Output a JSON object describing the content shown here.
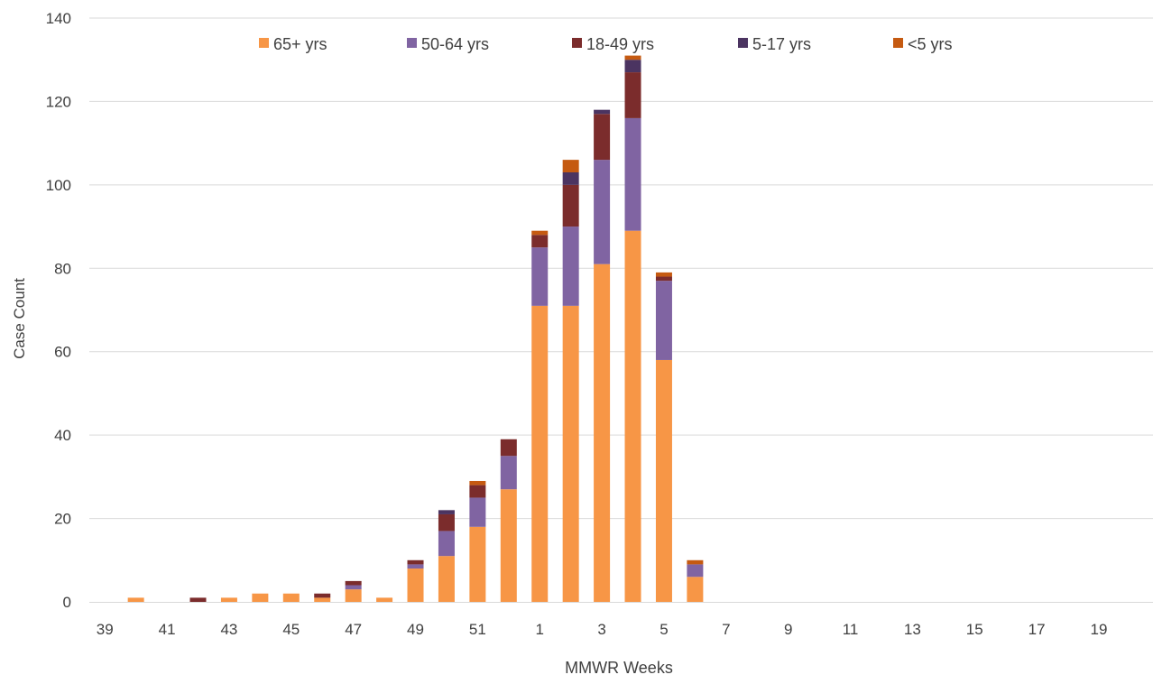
{
  "chart_data": {
    "type": "bar",
    "stacked": true,
    "title": "",
    "xlabel": "MMWR Weeks",
    "ylabel": "Case Count",
    "ylim": [
      0,
      140
    ],
    "yticks": [
      0,
      20,
      40,
      60,
      80,
      100,
      120,
      140
    ],
    "grid": true,
    "legend_position": "top",
    "categories": [
      "39",
      "40",
      "41",
      "42",
      "43",
      "44",
      "45",
      "46",
      "47",
      "48",
      "49",
      "50",
      "51",
      "52",
      "1",
      "2",
      "3",
      "4",
      "5",
      "6",
      "7",
      "8",
      "9",
      "10",
      "11",
      "12",
      "13",
      "14",
      "15",
      "16",
      "17",
      "18",
      "19",
      "20"
    ],
    "category_labels_shown": [
      "39",
      "41",
      "43",
      "45",
      "47",
      "49",
      "51",
      "1",
      "3",
      "5",
      "7",
      "9",
      "11",
      "13",
      "15",
      "17",
      "19"
    ],
    "series": [
      {
        "name": "65+ yrs",
        "color": "#f79646",
        "values": [
          0,
          1,
          0,
          0,
          1,
          2,
          2,
          1,
          3,
          1,
          8,
          11,
          18,
          27,
          71,
          71,
          81,
          89,
          58,
          6,
          0,
          0,
          0,
          0,
          0,
          0,
          0,
          0,
          0,
          0,
          0,
          0,
          0,
          0
        ]
      },
      {
        "name": "50-64 yrs",
        "color": "#8064a2",
        "values": [
          0,
          0,
          0,
          0,
          0,
          0,
          0,
          0,
          1,
          0,
          1,
          6,
          7,
          8,
          14,
          19,
          25,
          27,
          19,
          3,
          0,
          0,
          0,
          0,
          0,
          0,
          0,
          0,
          0,
          0,
          0,
          0,
          0,
          0
        ]
      },
      {
        "name": "18-49 yrs",
        "color": "#7b2c2c",
        "values": [
          0,
          0,
          0,
          1,
          0,
          0,
          0,
          1,
          1,
          0,
          1,
          4,
          3,
          4,
          3,
          10,
          11,
          11,
          1,
          0,
          0,
          0,
          0,
          0,
          0,
          0,
          0,
          0,
          0,
          0,
          0,
          0,
          0,
          0
        ]
      },
      {
        "name": "5-17 yrs",
        "color": "#4b3461",
        "values": [
          0,
          0,
          0,
          0,
          0,
          0,
          0,
          0,
          0,
          0,
          0,
          1,
          0,
          0,
          0,
          3,
          1,
          3,
          0,
          0,
          0,
          0,
          0,
          0,
          0,
          0,
          0,
          0,
          0,
          0,
          0,
          0,
          0,
          0
        ]
      },
      {
        "name": "<5 yrs",
        "color": "#c55a11",
        "values": [
          0,
          0,
          0,
          0,
          0,
          0,
          0,
          0,
          0,
          0,
          0,
          0,
          1,
          0,
          1,
          3,
          0,
          1,
          1,
          1,
          0,
          0,
          0,
          0,
          0,
          0,
          0,
          0,
          0,
          0,
          0,
          0,
          0,
          0
        ]
      }
    ]
  }
}
